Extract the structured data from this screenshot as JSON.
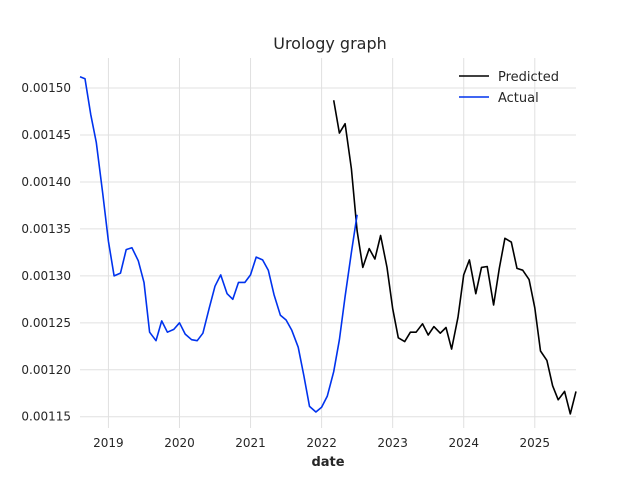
{
  "chart_data": {
    "type": "line",
    "title": "Urology graph",
    "xlabel": "date",
    "ylabel": "",
    "x_ticks": [
      "2019",
      "2020",
      "2021",
      "2022",
      "2023",
      "2024",
      "2025"
    ],
    "y_ticks": [
      "0.00115",
      "0.00120",
      "0.00125",
      "0.00130",
      "0.00135",
      "0.00140",
      "0.00145",
      "0.00150"
    ],
    "xlim": [
      2018.6,
      2025.58
    ],
    "ylim": [
      0.001138,
      0.001532
    ],
    "grid": true,
    "legend_position": "top-right",
    "series": [
      {
        "name": "Predicted",
        "color": "#000000",
        "points": [
          [
            2022.17,
            0.001487
          ],
          [
            2022.25,
            0.001452
          ],
          [
            2022.33,
            0.001462
          ],
          [
            2022.42,
            0.001414
          ],
          [
            2022.5,
            0.001348
          ],
          [
            2022.58,
            0.001309
          ],
          [
            2022.67,
            0.001329
          ],
          [
            2022.75,
            0.001318
          ],
          [
            2022.83,
            0.001343
          ],
          [
            2022.92,
            0.001309
          ],
          [
            2023.0,
            0.001265
          ],
          [
            2023.08,
            0.001234
          ],
          [
            2023.17,
            0.00123
          ],
          [
            2023.25,
            0.00124
          ],
          [
            2023.33,
            0.00124
          ],
          [
            2023.42,
            0.001249
          ],
          [
            2023.5,
            0.001237
          ],
          [
            2023.58,
            0.001246
          ],
          [
            2023.67,
            0.001239
          ],
          [
            2023.75,
            0.001245
          ],
          [
            2023.83,
            0.001222
          ],
          [
            2023.92,
            0.001256
          ],
          [
            2024.0,
            0.001301
          ],
          [
            2024.08,
            0.001317
          ],
          [
            2024.17,
            0.001281
          ],
          [
            2024.25,
            0.001309
          ],
          [
            2024.33,
            0.00131
          ],
          [
            2024.42,
            0.001269
          ],
          [
            2024.5,
            0.001308
          ],
          [
            2024.58,
            0.00134
          ],
          [
            2024.67,
            0.001336
          ],
          [
            2024.75,
            0.001308
          ],
          [
            2024.83,
            0.001306
          ],
          [
            2024.92,
            0.001296
          ],
          [
            2025.0,
            0.001266
          ],
          [
            2025.08,
            0.00122
          ],
          [
            2025.17,
            0.00121
          ],
          [
            2025.25,
            0.001183
          ],
          [
            2025.33,
            0.001168
          ],
          [
            2025.42,
            0.001177
          ],
          [
            2025.5,
            0.001153
          ],
          [
            2025.58,
            0.001177
          ]
        ]
      },
      {
        "name": "Actual",
        "color": "#0033ee",
        "points": [
          [
            2018.6,
            0.001512
          ],
          [
            2018.67,
            0.00151
          ],
          [
            2018.75,
            0.001472
          ],
          [
            2018.83,
            0.001442
          ],
          [
            2018.92,
            0.001388
          ],
          [
            2019.0,
            0.001337
          ],
          [
            2019.08,
            0.0013
          ],
          [
            2019.17,
            0.001303
          ],
          [
            2019.25,
            0.001328
          ],
          [
            2019.33,
            0.00133
          ],
          [
            2019.42,
            0.001316
          ],
          [
            2019.5,
            0.001293
          ],
          [
            2019.58,
            0.00124
          ],
          [
            2019.67,
            0.001231
          ],
          [
            2019.75,
            0.001252
          ],
          [
            2019.83,
            0.00124
          ],
          [
            2019.92,
            0.001243
          ],
          [
            2020.0,
            0.00125
          ],
          [
            2020.08,
            0.001238
          ],
          [
            2020.17,
            0.001232
          ],
          [
            2020.25,
            0.001231
          ],
          [
            2020.33,
            0.001239
          ],
          [
            2020.42,
            0.001266
          ],
          [
            2020.5,
            0.001289
          ],
          [
            2020.58,
            0.001301
          ],
          [
            2020.67,
            0.001281
          ],
          [
            2020.75,
            0.001275
          ],
          [
            2020.83,
            0.001293
          ],
          [
            2020.92,
            0.001293
          ],
          [
            2021.0,
            0.001301
          ],
          [
            2021.08,
            0.00132
          ],
          [
            2021.17,
            0.001317
          ],
          [
            2021.25,
            0.001306
          ],
          [
            2021.33,
            0.00128
          ],
          [
            2021.42,
            0.001258
          ],
          [
            2021.5,
            0.001253
          ],
          [
            2021.58,
            0.001242
          ],
          [
            2021.67,
            0.001224
          ],
          [
            2021.75,
            0.001194
          ],
          [
            2021.83,
            0.001161
          ],
          [
            2021.92,
            0.001155
          ],
          [
            2022.0,
            0.00116
          ],
          [
            2022.08,
            0.001172
          ],
          [
            2022.17,
            0.001198
          ],
          [
            2022.25,
            0.001232
          ],
          [
            2022.33,
            0.001278
          ],
          [
            2022.42,
            0.001325
          ],
          [
            2022.5,
            0.001365
          ]
        ]
      }
    ]
  }
}
